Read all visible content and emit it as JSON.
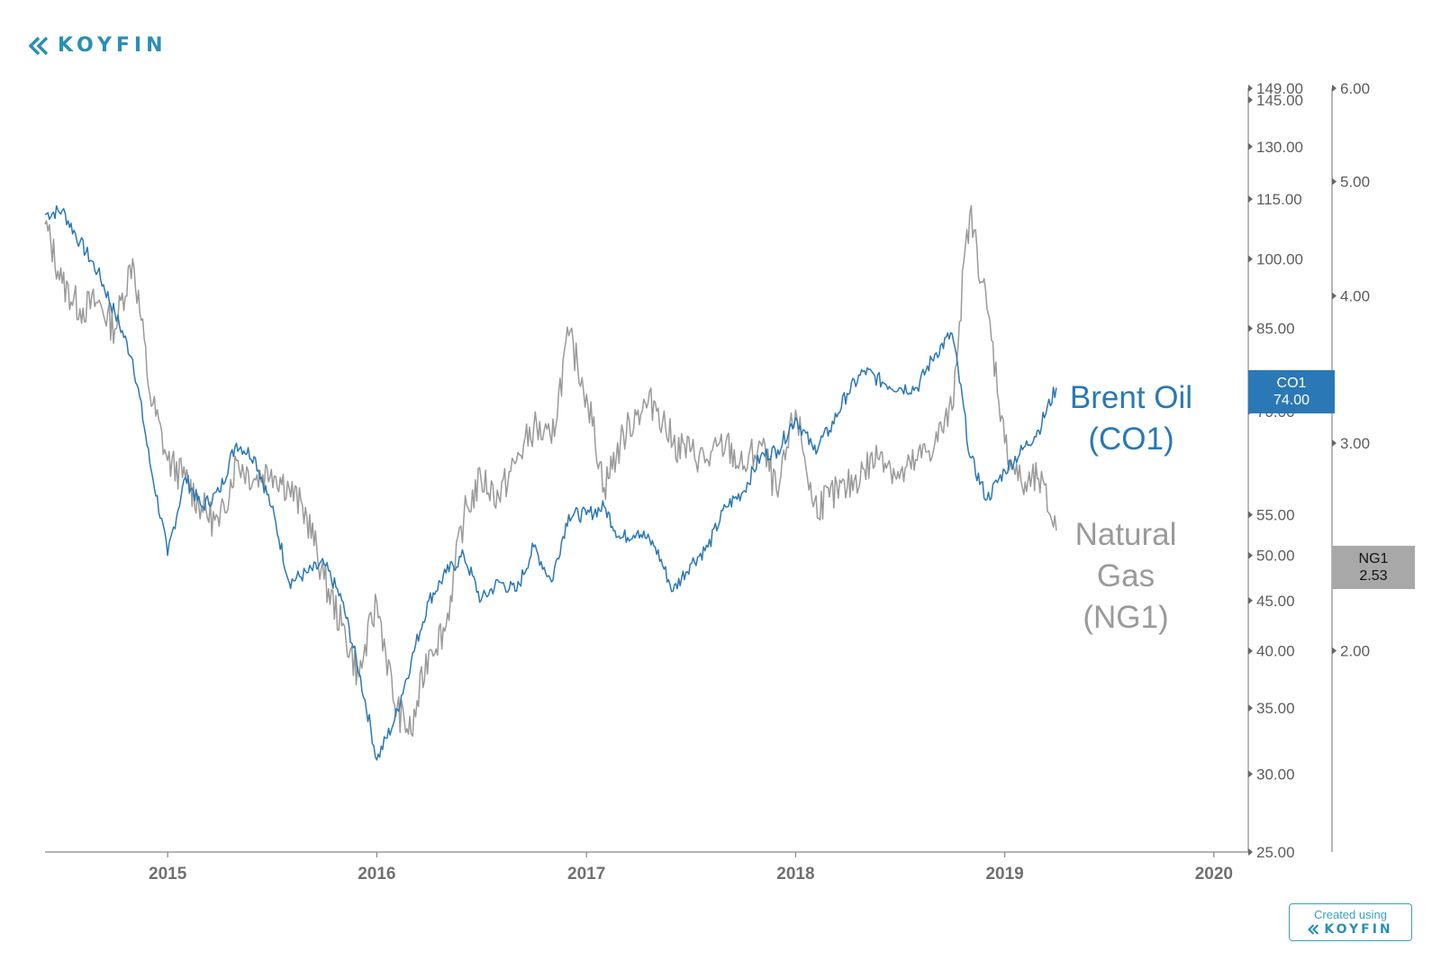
{
  "brand": {
    "name": "KOYFIN"
  },
  "credit": {
    "created_using": "Created using",
    "brand": "KOYFIN"
  },
  "chart_data": {
    "type": "line",
    "x_range": [
      "2014-06-01",
      "2020-03-01"
    ],
    "x_ticks": [
      "2015",
      "2016",
      "2017",
      "2018",
      "2019",
      "2020"
    ],
    "axes": {
      "left_series_axis": {
        "series": "CO1",
        "scale": "log",
        "range": [
          25,
          149
        ],
        "ticks": [
          "149.00",
          "145.00",
          "130.00",
          "115.00",
          "100.00",
          "85.00",
          "70.00",
          "55.00",
          "50.00",
          "45.00",
          "40.00",
          "35.00",
          "30.00",
          "25.00"
        ]
      },
      "right_series_axis": {
        "series": "NG1",
        "scale": "log",
        "range": [
          1.35,
          6.0
        ],
        "ticks": [
          "6.00",
          "5.00",
          "4.00",
          "3.00",
          "2.00"
        ]
      }
    },
    "grid": false,
    "series": [
      {
        "name": "CO1",
        "label_lines": [
          "Brent Oil",
          "(CO1)"
        ],
        "color": "#2a78b5",
        "last_value": "74.00",
        "points": [
          [
            "2014-06-01",
            111
          ],
          [
            "2014-07-01",
            112
          ],
          [
            "2014-08-01",
            104
          ],
          [
            "2014-09-01",
            97
          ],
          [
            "2014-10-01",
            88
          ],
          [
            "2014-11-01",
            79
          ],
          [
            "2014-12-01",
            62
          ],
          [
            "2015-01-01",
            50
          ],
          [
            "2015-02-01",
            60
          ],
          [
            "2015-03-01",
            56
          ],
          [
            "2015-04-01",
            58
          ],
          [
            "2015-05-01",
            65
          ],
          [
            "2015-06-01",
            63
          ],
          [
            "2015-07-01",
            56
          ],
          [
            "2015-08-01",
            47
          ],
          [
            "2015-09-01",
            48
          ],
          [
            "2015-10-01",
            49
          ],
          [
            "2015-11-01",
            45
          ],
          [
            "2015-12-01",
            38
          ],
          [
            "2016-01-01",
            31
          ],
          [
            "2016-02-01",
            34
          ],
          [
            "2016-03-01",
            39
          ],
          [
            "2016-04-01",
            45
          ],
          [
            "2016-05-01",
            48
          ],
          [
            "2016-06-01",
            50
          ],
          [
            "2016-07-01",
            45
          ],
          [
            "2016-08-01",
            47
          ],
          [
            "2016-09-01",
            46
          ],
          [
            "2016-10-01",
            51
          ],
          [
            "2016-11-01",
            47
          ],
          [
            "2016-12-01",
            55
          ],
          [
            "2017-01-01",
            55
          ],
          [
            "2017-02-01",
            56
          ],
          [
            "2017-03-01",
            52
          ],
          [
            "2017-04-01",
            53
          ],
          [
            "2017-05-01",
            51
          ],
          [
            "2017-06-01",
            46
          ],
          [
            "2017-07-01",
            49
          ],
          [
            "2017-08-01",
            51
          ],
          [
            "2017-09-01",
            56
          ],
          [
            "2017-10-01",
            58
          ],
          [
            "2017-11-01",
            63
          ],
          [
            "2017-12-01",
            64
          ],
          [
            "2018-01-01",
            69
          ],
          [
            "2018-02-01",
            64
          ],
          [
            "2018-03-01",
            67
          ],
          [
            "2018-04-01",
            73
          ],
          [
            "2018-05-01",
            77
          ],
          [
            "2018-06-01",
            75
          ],
          [
            "2018-07-01",
            74
          ],
          [
            "2018-08-01",
            74
          ],
          [
            "2018-09-01",
            80
          ],
          [
            "2018-10-01",
            84
          ],
          [
            "2018-11-01",
            63
          ],
          [
            "2018-12-01",
            57
          ],
          [
            "2019-01-01",
            61
          ],
          [
            "2019-02-01",
            64
          ],
          [
            "2019-03-01",
            67
          ],
          [
            "2019-04-01",
            74
          ]
        ]
      },
      {
        "name": "NG1",
        "label_lines": [
          "Natural",
          "Gas",
          "(NG1)"
        ],
        "color": "#9a9a9a",
        "last_value": "2.53",
        "points": [
          [
            "2014-06-01",
            4.6
          ],
          [
            "2014-07-01",
            4.1
          ],
          [
            "2014-08-01",
            3.9
          ],
          [
            "2014-09-01",
            3.95
          ],
          [
            "2014-10-01",
            3.75
          ],
          [
            "2014-11-01",
            4.3
          ],
          [
            "2014-12-01",
            3.3
          ],
          [
            "2015-01-01",
            2.9
          ],
          [
            "2015-02-01",
            2.8
          ],
          [
            "2015-03-01",
            2.65
          ],
          [
            "2015-04-01",
            2.55
          ],
          [
            "2015-05-01",
            2.9
          ],
          [
            "2015-06-01",
            2.8
          ],
          [
            "2015-07-01",
            2.85
          ],
          [
            "2015-08-01",
            2.75
          ],
          [
            "2015-09-01",
            2.6
          ],
          [
            "2015-10-01",
            2.3
          ],
          [
            "2015-11-01",
            2.1
          ],
          [
            "2015-12-01",
            1.9
          ],
          [
            "2016-01-01",
            2.2
          ],
          [
            "2016-02-01",
            1.8
          ],
          [
            "2016-03-01",
            1.7
          ],
          [
            "2016-04-01",
            2.0
          ],
          [
            "2016-05-01",
            2.1
          ],
          [
            "2016-06-01",
            2.6
          ],
          [
            "2016-07-01",
            2.8
          ],
          [
            "2016-08-01",
            2.7
          ],
          [
            "2016-09-01",
            2.9
          ],
          [
            "2016-10-01",
            3.1
          ],
          [
            "2016-11-01",
            3.0
          ],
          [
            "2016-12-01",
            3.7
          ],
          [
            "2017-01-01",
            3.3
          ],
          [
            "2017-02-01",
            2.75
          ],
          [
            "2017-03-01",
            3.0
          ],
          [
            "2017-04-01",
            3.2
          ],
          [
            "2017-05-01",
            3.25
          ],
          [
            "2017-06-01",
            3.0
          ],
          [
            "2017-07-01",
            2.95
          ],
          [
            "2017-08-01",
            2.9
          ],
          [
            "2017-09-01",
            3.0
          ],
          [
            "2017-10-01",
            2.85
          ],
          [
            "2017-11-01",
            3.0
          ],
          [
            "2017-12-01",
            2.7
          ],
          [
            "2018-01-01",
            3.2
          ],
          [
            "2018-02-01",
            2.65
          ],
          [
            "2018-03-01",
            2.7
          ],
          [
            "2018-04-01",
            2.75
          ],
          [
            "2018-05-01",
            2.85
          ],
          [
            "2018-06-01",
            2.95
          ],
          [
            "2018-07-01",
            2.8
          ],
          [
            "2018-08-01",
            2.9
          ],
          [
            "2018-09-01",
            3.0
          ],
          [
            "2018-10-01",
            3.2
          ],
          [
            "2018-11-01",
            4.7
          ],
          [
            "2018-12-01",
            3.9
          ],
          [
            "2019-01-01",
            3.0
          ],
          [
            "2019-02-01",
            2.75
          ],
          [
            "2019-03-01",
            2.8
          ],
          [
            "2019-04-01",
            2.53
          ]
        ]
      }
    ]
  }
}
